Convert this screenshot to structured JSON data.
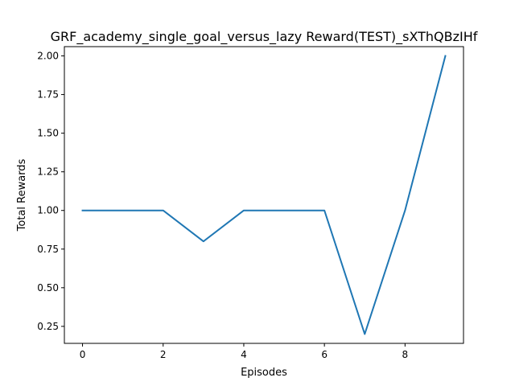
{
  "chart_data": {
    "type": "line",
    "title": "GRF_academy_single_goal_versus_lazy Reward(TEST)_sXThQBzIHf",
    "xlabel": "Episodes",
    "ylabel": "Total Rewards",
    "x": [
      0,
      1,
      2,
      3,
      4,
      5,
      6,
      7,
      8,
      9
    ],
    "series": [
      {
        "values": [
          1.0,
          1.0,
          1.0,
          0.8,
          1.0,
          1.0,
          1.0,
          0.2,
          1.0,
          2.0
        ]
      }
    ],
    "xlim": [
      -0.45,
      9.45
    ],
    "ylim": [
      0.14,
      2.06
    ],
    "xticks": [
      0,
      2,
      4,
      6,
      8
    ],
    "xtick_labels": [
      "0",
      "2",
      "4",
      "6",
      "8"
    ],
    "yticks": [
      0.25,
      0.5,
      0.75,
      1.0,
      1.25,
      1.5,
      1.75,
      2.0
    ],
    "ytick_labels": [
      "0.25",
      "0.50",
      "0.75",
      "1.00",
      "1.25",
      "1.50",
      "1.75",
      "2.00"
    ],
    "grid": false,
    "line_color": "#1f77b4"
  }
}
